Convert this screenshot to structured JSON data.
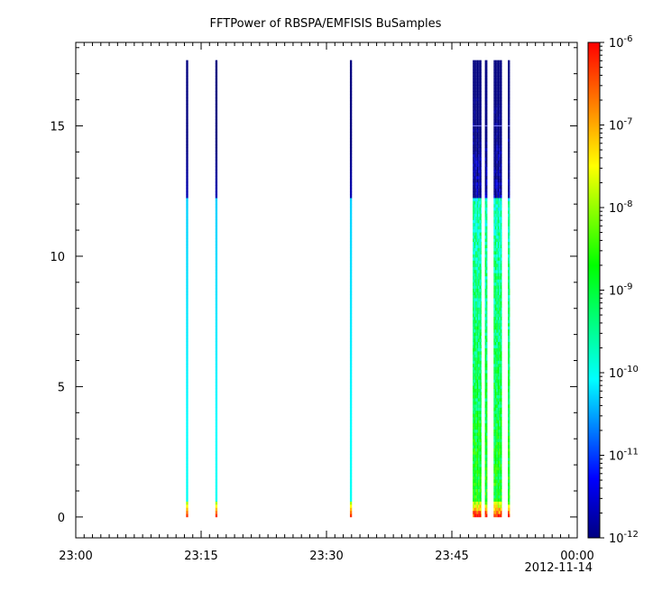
{
  "chart_data": {
    "type": "heatmap",
    "title": "FFTPower of RBSPA/EMFISIS  BuSamples",
    "xlabel": "",
    "ylabel": "",
    "x_ticks": [
      "23:00",
      "23:15",
      "23:30",
      "23:45",
      "00:00"
    ],
    "x_tick_values_min": [
      0,
      15,
      30,
      45,
      60
    ],
    "x_date_label": "2012-11-14",
    "xlim_min": [
      0,
      60
    ],
    "y_ticks": [
      "0",
      "5",
      "10",
      "15"
    ],
    "y_tick_values": [
      0,
      5,
      10,
      15
    ],
    "ylim": [
      -0.8,
      18.2
    ],
    "colorbar": {
      "scale": "log",
      "range": [
        1e-12,
        1e-06
      ],
      "tick_exponents": [
        "-12",
        "-11",
        "-10",
        "-9",
        "-8",
        "-7",
        "-6"
      ],
      "tick_base": "10",
      "colormap": [
        "#000080",
        "#0000ff",
        "#00ffff",
        "#00ff00",
        "#ffff00",
        "#ff0000"
      ]
    },
    "bursts": [
      {
        "t_start": 13.2,
        "t_end": 13.45,
        "y_top": 17.5,
        "profile": "single"
      },
      {
        "t_start": 16.7,
        "t_end": 16.95,
        "y_top": 17.5,
        "profile": "single"
      },
      {
        "t_start": 32.8,
        "t_end": 33.05,
        "y_top": 17.5,
        "profile": "single"
      },
      {
        "t_start": 47.5,
        "t_end": 48.55,
        "y_top": 17.5,
        "profile": "cluster"
      },
      {
        "t_start": 48.95,
        "t_end": 49.25,
        "y_top": 17.5,
        "profile": "cluster"
      },
      {
        "t_start": 50.0,
        "t_end": 51.0,
        "y_top": 17.5,
        "profile": "cluster"
      },
      {
        "t_start": 51.7,
        "t_end": 51.95,
        "y_top": 17.5,
        "profile": "cluster"
      }
    ],
    "spectrum_profile": {
      "y_knee": 12.2,
      "log_power_low_freq": -6.3,
      "log_power_mid": -10.3,
      "log_power_high_freq": -11.7
    }
  }
}
